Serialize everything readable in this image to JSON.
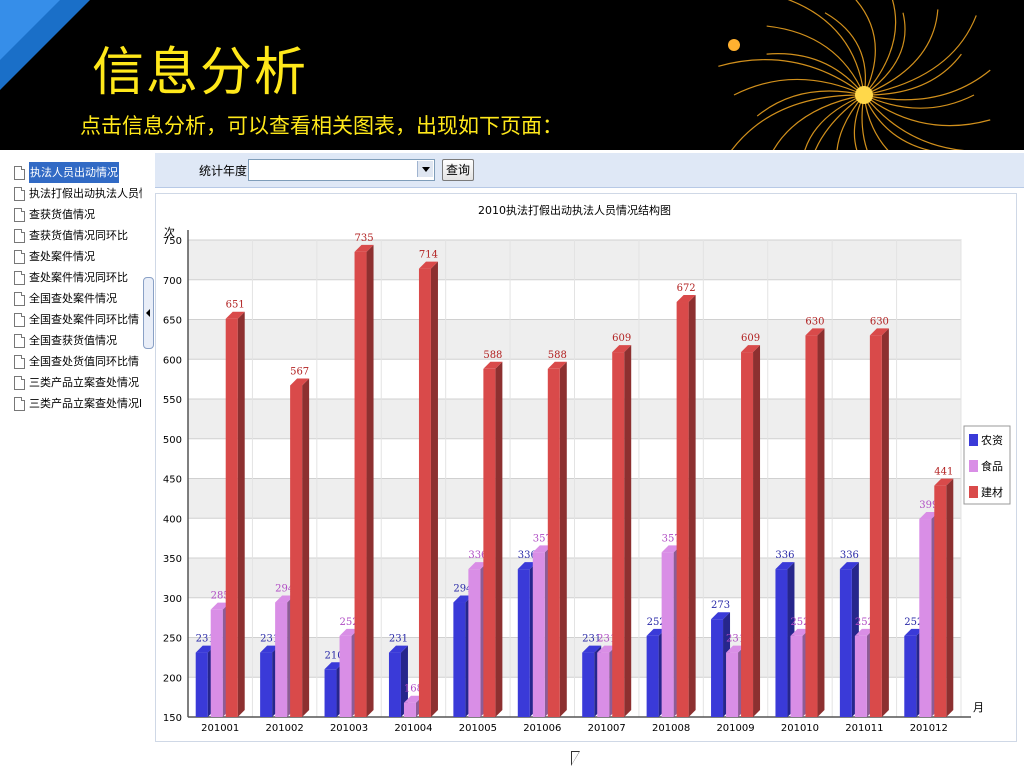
{
  "header": {
    "title": "信息分析",
    "subtitle": "点击信息分析，可以查看相关图表，出现如下页面："
  },
  "tree": {
    "items": [
      {
        "label": "执法人员出动情况",
        "selected": true
      },
      {
        "label": "执法打假出动执法人员情",
        "selected": false
      },
      {
        "label": "查获货值情况",
        "selected": false
      },
      {
        "label": "查获货值情况同环比",
        "selected": false
      },
      {
        "label": "查处案件情况",
        "selected": false
      },
      {
        "label": "查处案件情况同环比",
        "selected": false
      },
      {
        "label": "全国查处案件情况",
        "selected": false
      },
      {
        "label": "全国查处案件同环比情",
        "selected": false
      },
      {
        "label": "全国查获货值情况",
        "selected": false
      },
      {
        "label": "全国查处货值同环比情",
        "selected": false
      },
      {
        "label": "三类产品立案查处情况",
        "selected": false
      },
      {
        "label": "三类产品立案查处情况l",
        "selected": false
      }
    ]
  },
  "toolbar": {
    "year_label": "统计年度",
    "year_value": "",
    "query_label": "查询"
  },
  "chart_data": {
    "type": "bar",
    "title": "2010执法打假出动执法人员情况结构图",
    "ylabel": "次",
    "xlabel": "月",
    "ylim": [
      150,
      750
    ],
    "yticks": [
      150,
      200,
      250,
      300,
      350,
      400,
      450,
      500,
      550,
      600,
      650,
      700,
      750
    ],
    "categories": [
      "201001",
      "201002",
      "201003",
      "201004",
      "201005",
      "201006",
      "201007",
      "201008",
      "201009",
      "201010",
      "201011",
      "201012"
    ],
    "series": [
      {
        "name": "农资",
        "color": "#3a3ad8",
        "values": [
          231,
          231,
          210,
          231,
          294,
          336,
          231,
          252,
          273,
          336,
          336,
          252
        ]
      },
      {
        "name": "食品",
        "color": "#d98ee6",
        "values": [
          285,
          294,
          252,
          168,
          336,
          357,
          231,
          357,
          231,
          252,
          252,
          399
        ]
      },
      {
        "name": "建材",
        "color": "#d94a4a",
        "values": [
          651,
          567,
          735,
          714,
          588,
          588,
          609,
          672,
          609,
          630,
          630,
          441
        ]
      }
    ],
    "legend": "right",
    "grid": true
  }
}
